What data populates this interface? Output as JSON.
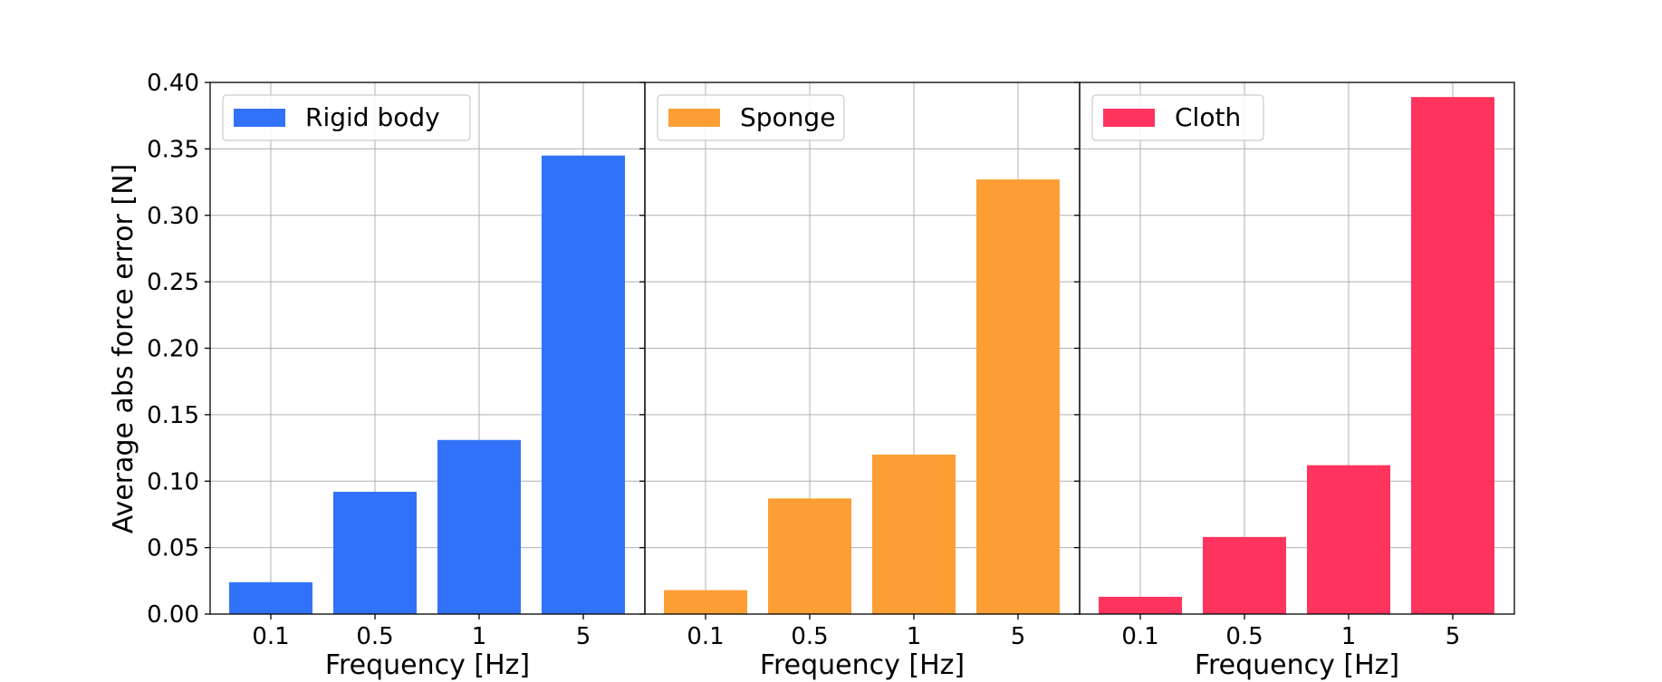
{
  "chart_data": [
    {
      "type": "bar",
      "categories": [
        "0.1",
        "0.5",
        "1",
        "5"
      ],
      "series": [
        {
          "name": "Rigid body",
          "values": [
            0.024,
            0.092,
            0.131,
            0.345
          ],
          "color": "#3272f9"
        }
      ],
      "xlabel": "Frequency [Hz]",
      "ylabel": "Average abs force error [N]",
      "ylim": [
        0,
        0.4
      ],
      "yticks": [
        "0.00",
        "0.05",
        "0.10",
        "0.15",
        "0.20",
        "0.25",
        "0.30",
        "0.35",
        "0.40"
      ],
      "grid": true,
      "legend": "top-left"
    },
    {
      "type": "bar",
      "categories": [
        "0.1",
        "0.5",
        "1",
        "5"
      ],
      "series": [
        {
          "name": "Sponge",
          "values": [
            0.018,
            0.087,
            0.12,
            0.327
          ],
          "color": "#fd9e35"
        }
      ],
      "xlabel": "Frequency [Hz]",
      "ylim": [
        0,
        0.4
      ],
      "grid": true,
      "legend": "top-left"
    },
    {
      "type": "bar",
      "categories": [
        "0.1",
        "0.5",
        "1",
        "5"
      ],
      "series": [
        {
          "name": "Cloth",
          "values": [
            0.013,
            0.058,
            0.112,
            0.389
          ],
          "color": "#fe345e"
        }
      ],
      "xlabel": "Frequency [Hz]",
      "ylim": [
        0,
        0.4
      ],
      "grid": true,
      "legend": "top-left"
    }
  ]
}
